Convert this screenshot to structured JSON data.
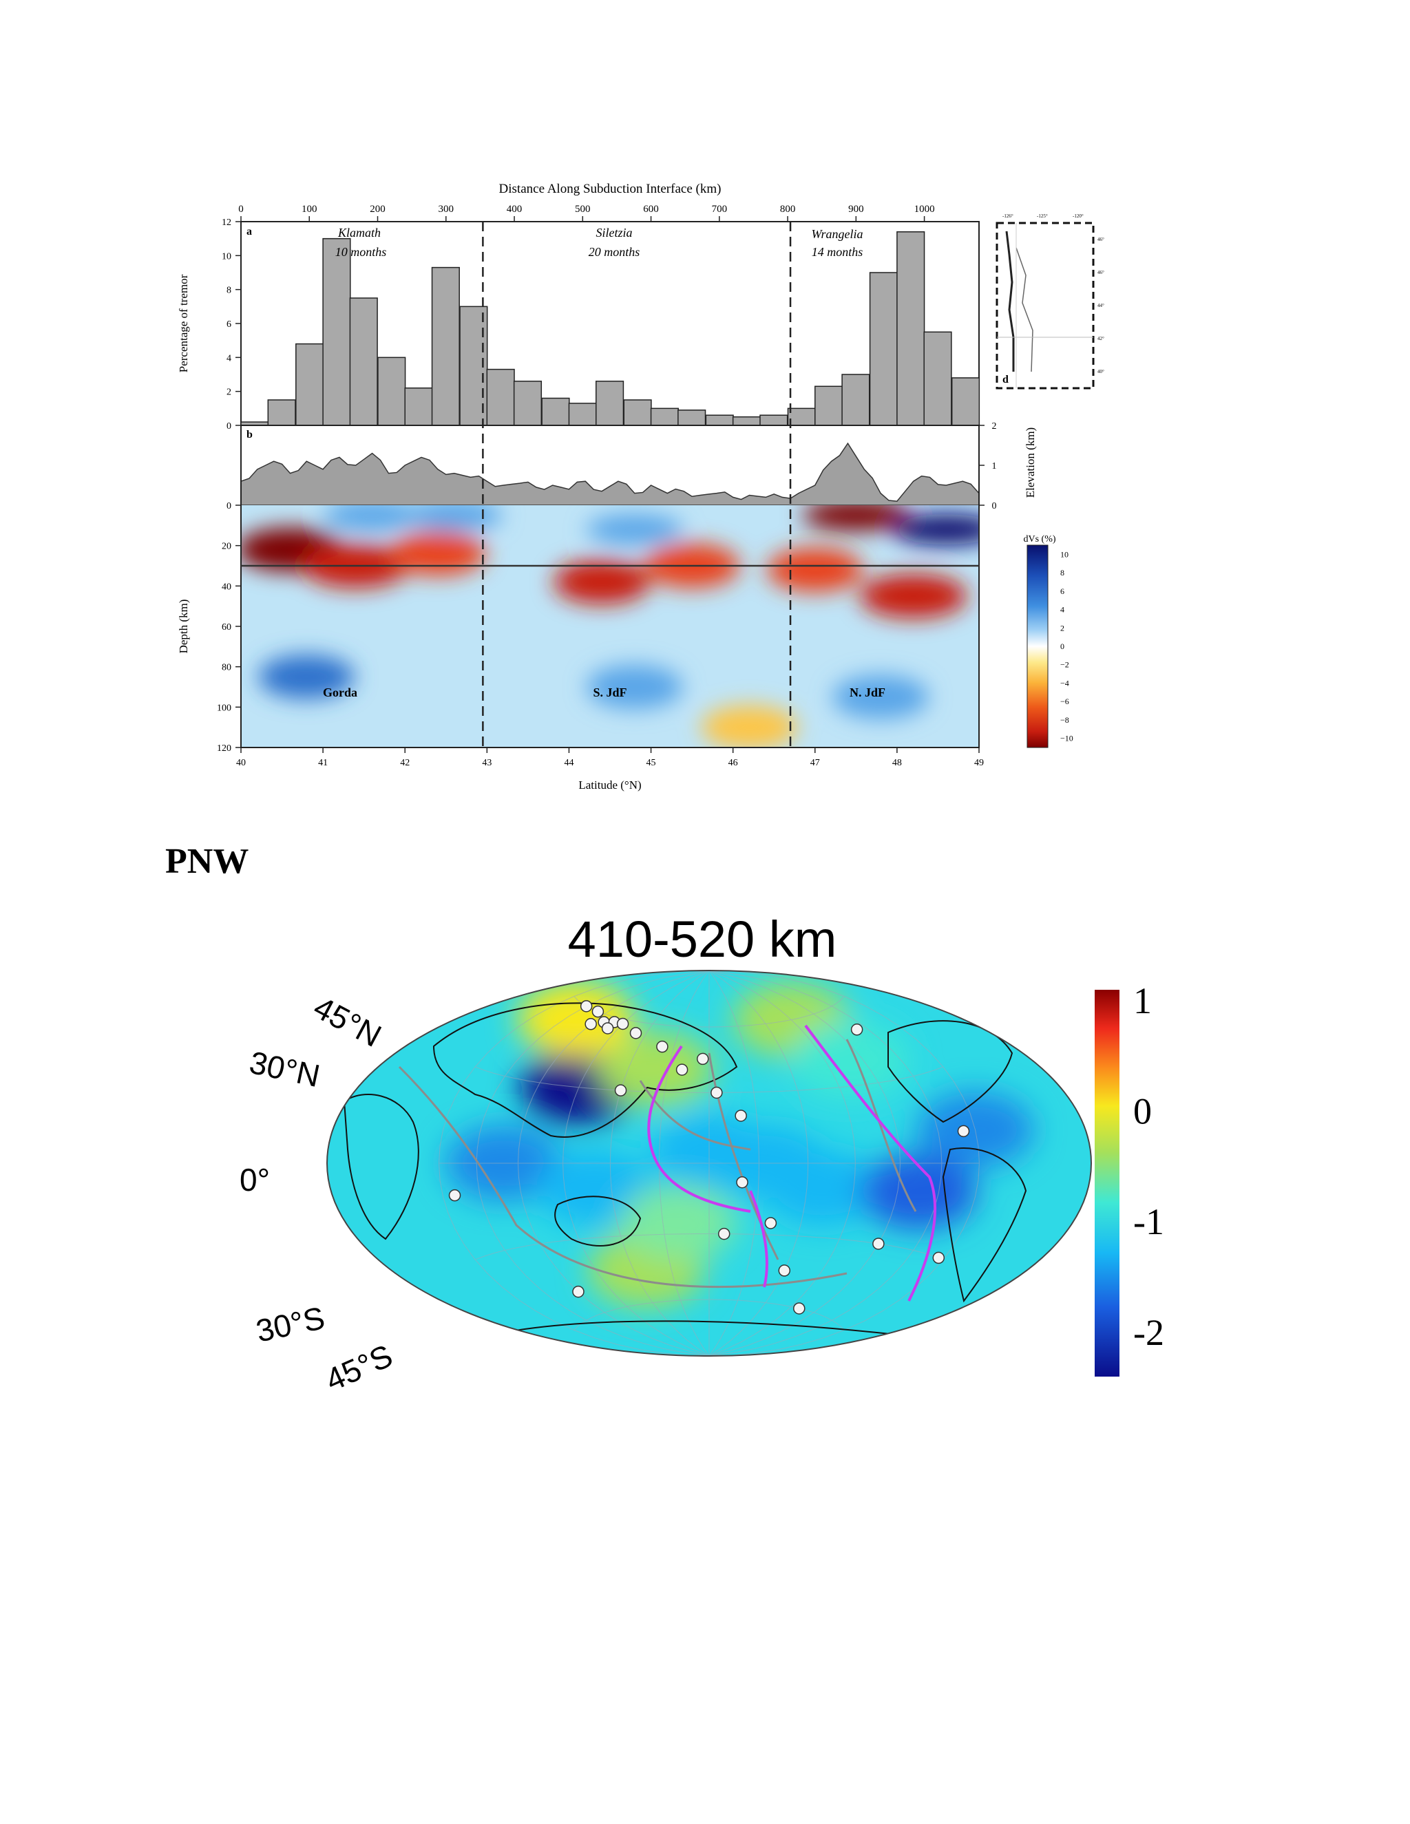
{
  "figure1": {
    "top_axis_title": "Distance Along Subduction Interface (km)",
    "top_axis_ticks": [
      "0",
      "100",
      "200",
      "300",
      "400",
      "500",
      "600",
      "700",
      "800",
      "900",
      "1000"
    ],
    "top_axis_values": [
      0,
      100,
      200,
      300,
      400,
      500,
      600,
      700,
      800,
      900,
      1000
    ],
    "panel_a_label": "a",
    "panel_b_label": "b",
    "panel_d_label": "d",
    "tremor_axis_label": "Percentage of tremor",
    "tremor_ticks": [
      "0",
      "2",
      "4",
      "6",
      "8",
      "10",
      "12"
    ],
    "elevation_axis_label": "Elevation (km)",
    "elevation_ticks": [
      "0",
      "1",
      "2"
    ],
    "depth_axis_label": "Depth (km)",
    "depth_ticks": [
      "0",
      "20",
      "40",
      "60",
      "80",
      "100",
      "120"
    ],
    "latitude_axis_label": "Latitude (°N)",
    "latitude_ticks": [
      "40",
      "41",
      "42",
      "43",
      "44",
      "45",
      "46",
      "47",
      "48",
      "49"
    ],
    "regions": [
      {
        "name": "Klamath",
        "duration": "10 months"
      },
      {
        "name": "Siletzia",
        "duration": "20 months"
      },
      {
        "name": "Wrangelia",
        "duration": "14 months"
      }
    ],
    "slab_labels": [
      "Gorda",
      "S. JdF",
      "N. JdF"
    ],
    "colorbar_title": "dVs (%)",
    "colorbar_ticks": [
      "10",
      "8",
      "6",
      "4",
      "2",
      "0",
      "−2",
      "−4",
      "−6",
      "−8",
      "−10"
    ],
    "boundary_latitudes": [
      42.95,
      46.7
    ],
    "moho_depth_km": 30,
    "inset_lon_ticks": [
      "-126°",
      "-125°",
      "-120°"
    ],
    "inset_lat_ticks": [
      "46°",
      "46°",
      "44°",
      "42°",
      "40°"
    ]
  },
  "section_title": "PNW",
  "figure2": {
    "title": "410-520  km",
    "lat_labels": [
      "45°N",
      "30°N",
      "0°",
      "30°S",
      "45°S"
    ],
    "colorbar_ticks": [
      "1",
      "0",
      "-1",
      "-2"
    ],
    "colorbar_range": [
      -2.4,
      1.1
    ]
  },
  "chart_data": [
    {
      "type": "bar",
      "title": "Distance Along Subduction Interface (km)",
      "xlabel": "Latitude (°N)",
      "ylabel": "Percentage of tremor",
      "xlim": [
        40,
        49
      ],
      "ylim": [
        0,
        12
      ],
      "bin_width_deg": 0.333,
      "x": [
        40.0,
        40.33,
        40.67,
        41.0,
        41.33,
        41.67,
        42.0,
        42.33,
        42.67,
        43.0,
        43.33,
        43.67,
        44.0,
        44.33,
        44.67,
        45.0,
        45.33,
        45.67,
        46.0,
        46.33,
        46.67,
        47.0,
        47.33,
        47.67,
        48.0,
        48.33,
        48.67
      ],
      "values": [
        0.2,
        1.5,
        4.8,
        11.0,
        7.5,
        4.0,
        2.2,
        9.3,
        7.0,
        3.3,
        2.6,
        1.6,
        1.3,
        2.6,
        1.5,
        1.0,
        0.9,
        0.6,
        0.5,
        0.6,
        1.0,
        2.3,
        3.0,
        9.0,
        11.4,
        5.5,
        2.8
      ]
    },
    {
      "type": "area",
      "title": "Elevation",
      "ylabel": "Elevation (km)",
      "ylim": [
        0,
        2
      ],
      "x": [
        40.0,
        40.2,
        40.4,
        40.6,
        40.8,
        41.0,
        41.2,
        41.4,
        41.6,
        41.8,
        42.0,
        42.2,
        42.4,
        42.6,
        42.8,
        43.0,
        43.2,
        43.4,
        43.6,
        43.8,
        44.0,
        44.2,
        44.4,
        44.6,
        44.8,
        45.0,
        45.2,
        45.4,
        45.6,
        45.8,
        46.0,
        46.2,
        46.4,
        46.6,
        46.8,
        47.0,
        47.2,
        47.4,
        47.6,
        47.8,
        48.0,
        48.2,
        48.4,
        48.6,
        48.8,
        49.0
      ],
      "values": [
        0.6,
        0.9,
        1.1,
        0.8,
        1.1,
        0.9,
        1.2,
        1.0,
        1.3,
        0.8,
        1.0,
        1.2,
        0.9,
        0.8,
        0.7,
        0.6,
        0.5,
        0.55,
        0.45,
        0.5,
        0.4,
        0.6,
        0.35,
        0.6,
        0.3,
        0.5,
        0.3,
        0.35,
        0.25,
        0.3,
        0.2,
        0.25,
        0.2,
        0.2,
        0.3,
        0.5,
        1.1,
        1.55,
        0.9,
        0.3,
        0.1,
        0.6,
        0.7,
        0.5,
        0.6,
        0.3
      ]
    },
    {
      "type": "heatmap",
      "title": "dVs (%)",
      "xlabel": "Latitude (°N)",
      "ylabel": "Depth (km)",
      "xlim": [
        40,
        49
      ],
      "ylim": [
        0,
        120
      ],
      "clim": [
        -10,
        10
      ],
      "features": [
        {
          "lat": 40.6,
          "depth": 22,
          "dvs": -9
        },
        {
          "lat": 41.4,
          "depth": 30,
          "dvs": -8
        },
        {
          "lat": 42.4,
          "depth": 24,
          "dvs": -6
        },
        {
          "lat": 41.6,
          "depth": 5,
          "dvs": 5
        },
        {
          "lat": 42.6,
          "depth": 5,
          "dvs": 4
        },
        {
          "lat": 44.4,
          "depth": 38,
          "dvs": -7
        },
        {
          "lat": 45.5,
          "depth": 30,
          "dvs": -5
        },
        {
          "lat": 47.0,
          "depth": 32,
          "dvs": -6
        },
        {
          "lat": 48.2,
          "depth": 45,
          "dvs": -8
        },
        {
          "lat": 44.8,
          "depth": 12,
          "dvs": 4
        },
        {
          "lat": 47.5,
          "depth": 5,
          "dvs": -9
        },
        {
          "lat": 48.6,
          "depth": 12,
          "dvs": 10
        },
        {
          "lat": 40.8,
          "depth": 85,
          "dvs": 6
        },
        {
          "lat": 44.8,
          "depth": 90,
          "dvs": 5
        },
        {
          "lat": 47.8,
          "depth": 95,
          "dvs": 5
        },
        {
          "lat": 46.2,
          "depth": 110,
          "dvs": -2
        }
      ]
    },
    {
      "type": "heatmap",
      "title": "410-520  km",
      "clim": [
        -2.4,
        1.1
      ],
      "projection": "hammer",
      "features": [
        {
          "lon": 150,
          "lat": 5,
          "dvs": -1.2
        },
        {
          "lon": -175,
          "lat": 0,
          "dvs": -1.3
        },
        {
          "lon": -140,
          "lat": -10,
          "dvs": -1.3
        },
        {
          "lon": -30,
          "lat": 10,
          "dvs": -1.8
        },
        {
          "lon": 60,
          "lat": 30,
          "dvs": -2.2
        },
        {
          "lon": 20,
          "lat": 0,
          "dvs": -1.6
        },
        {
          "lon": 80,
          "lat": -10,
          "dvs": -1.2
        },
        {
          "lon": 100,
          "lat": -45,
          "dvs": -0.5
        },
        {
          "lon": 110,
          "lat": 40,
          "dvs": -0.6
        },
        {
          "lon": -120,
          "lat": 60,
          "dvs": -0.4
        },
        {
          "lon": 130,
          "lat": -25,
          "dvs": -0.7
        },
        {
          "lon": -75,
          "lat": -10,
          "dvs": -1.9
        },
        {
          "lon": -100,
          "lat": 40,
          "dvs": -1.0
        },
        {
          "lon": 10,
          "lat": 55,
          "dvs": 0.3
        }
      ]
    }
  ]
}
